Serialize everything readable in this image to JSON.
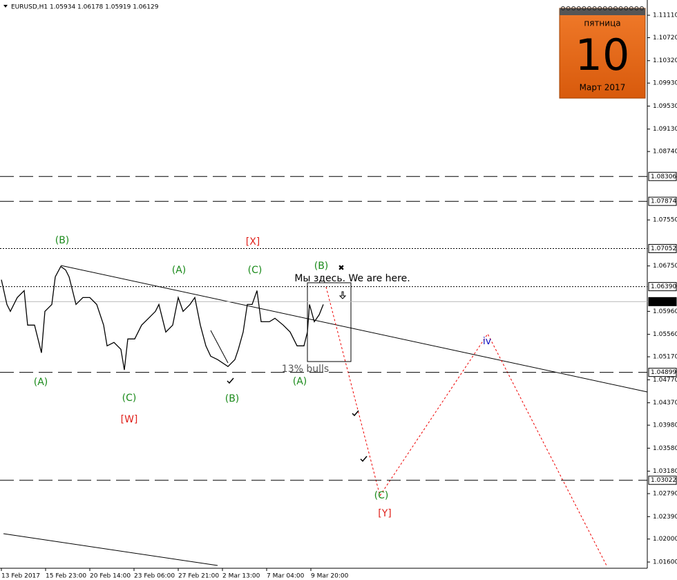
{
  "chart_data": {
    "type": "line",
    "title": "EURUSD,H1  1.05934 1.06178 1.05919 1.06129",
    "calendar": {
      "weekday": "пятница",
      "day": "10",
      "month": "Март 2017"
    },
    "xlim": [
      0,
      937
    ],
    "ylim": [
      1.01492,
      1.11375
    ],
    "xticks": [
      {
        "value": 2,
        "label": "13 Feb 2017"
      },
      {
        "value": 66,
        "label": "15 Feb 23:00"
      },
      {
        "value": 130,
        "label": "20 Feb 14:00"
      },
      {
        "value": 194,
        "label": "23 Feb 06:00"
      },
      {
        "value": 258,
        "label": "27 Feb 21:00"
      },
      {
        "value": 322,
        "label": "2 Mar 13:00"
      },
      {
        "value": 386,
        "label": "7 Mar 04:00"
      },
      {
        "value": 450,
        "label": "9 Mar 20:00"
      }
    ],
    "yticks": [
      {
        "value": 1.1111,
        "label": "1.11110"
      },
      {
        "value": 1.1072,
        "label": "1.10720"
      },
      {
        "value": 1.1032,
        "label": "1.10320"
      },
      {
        "value": 1.0993,
        "label": "1.09930"
      },
      {
        "value": 1.0953,
        "label": "1.09530"
      },
      {
        "value": 1.0913,
        "label": "1.09130"
      },
      {
        "value": 1.0874,
        "label": "1.08740"
      },
      {
        "value": 1.0755,
        "label": "1.07550"
      },
      {
        "value": 1.0675,
        "label": "1.06750"
      },
      {
        "value": 1.0596,
        "label": "1.05960"
      },
      {
        "value": 1.0556,
        "label": "1.05560"
      },
      {
        "value": 1.0517,
        "label": "1.05170"
      },
      {
        "value": 1.0477,
        "label": "1.04770"
      },
      {
        "value": 1.0437,
        "label": "1.04370"
      },
      {
        "value": 1.0398,
        "label": "1.03980"
      },
      {
        "value": 1.0358,
        "label": "1.03580"
      },
      {
        "value": 1.0318,
        "label": "1.03180"
      },
      {
        "value": 1.0279,
        "label": "1.02790"
      },
      {
        "value": 1.0239,
        "label": "1.02390"
      },
      {
        "value": 1.02,
        "label": "1.02000"
      },
      {
        "value": 1.016,
        "label": "1.01600"
      }
    ],
    "levels": [
      {
        "value": 1.08306,
        "label": "1.08306"
      },
      {
        "value": 1.07874,
        "label": "1.07874"
      },
      {
        "value": 1.07052,
        "label": "1.07052"
      },
      {
        "value": 1.0639,
        "label": "1.06390"
      },
      {
        "value": 1.06129,
        "label": "1.06129"
      },
      {
        "value": 1.04899,
        "label": "1.04899"
      },
      {
        "value": 1.03022,
        "label": "1.03022"
      }
    ],
    "series": [
      {
        "name": "EURUSD",
        "color": "#000000",
        "x": [
          2,
          10,
          15,
          25,
          35,
          40,
          50,
          60,
          65,
          75,
          80,
          88,
          95,
          100,
          105,
          110,
          120,
          130,
          140,
          150,
          155,
          165,
          175,
          180,
          185,
          195,
          205,
          215,
          225,
          230,
          240,
          250,
          258,
          265,
          275,
          282,
          290,
          298,
          305,
          315,
          330,
          340,
          345,
          352,
          358,
          365,
          372,
          378,
          390,
          398,
          410,
          420,
          430,
          440,
          445,
          448,
          455,
          462,
          468
        ],
        "values": [
          1.0651,
          1.0608,
          1.0596,
          1.062,
          1.0632,
          1.0572,
          1.0572,
          1.0524,
          1.0596,
          1.0608,
          1.0656,
          1.0674,
          1.0668,
          1.0656,
          1.0632,
          1.0608,
          1.062,
          1.062,
          1.0608,
          1.0572,
          1.0536,
          1.0542,
          1.053,
          1.0494,
          1.0548,
          1.0548,
          1.0572,
          1.0584,
          1.0596,
          1.0608,
          1.056,
          1.0572,
          1.062,
          1.0596,
          1.0608,
          1.062,
          1.0572,
          1.0536,
          1.0518,
          1.0512,
          1.05,
          1.0512,
          1.053,
          1.056,
          1.0608,
          1.0608,
          1.0632,
          1.0578,
          1.0578,
          1.0584,
          1.0572,
          1.056,
          1.0536,
          1.0536,
          1.056,
          1.0608,
          1.0578,
          1.059,
          1.0608
        ]
      }
    ],
    "annotations": [
      "(B)",
      "[X]",
      "(A)",
      "(C)",
      "(B)",
      "Мы здесь. We are here.",
      "13% bulls",
      "(A)",
      "(C)",
      "[W]",
      "(B)",
      "(A)",
      "iv",
      "(C)",
      "[Y]"
    ]
  }
}
